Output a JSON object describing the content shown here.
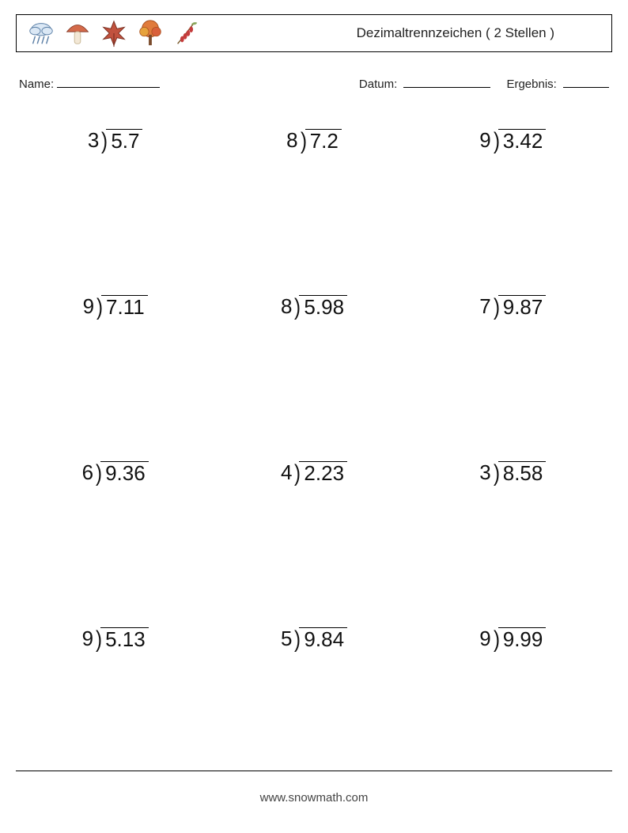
{
  "header": {
    "title": "Dezimaltrennzeichen ( 2 Stellen )",
    "icons": [
      "rain-cloud",
      "mushroom",
      "maple-leaf",
      "autumn-tree",
      "barberry"
    ]
  },
  "info": {
    "name_label": "Name:",
    "date_label": "Datum:",
    "result_label": "Ergebnis:"
  },
  "worksheet": {
    "type": "long-division-grid",
    "columns": 3,
    "rows": 4,
    "font_size_pt": 26,
    "text_color": "#111111",
    "vinculum_color": "#000000",
    "vinculum_width": 1.6,
    "problems": [
      {
        "divisor": "3",
        "dividend": "5.7"
      },
      {
        "divisor": "8",
        "dividend": "7.2"
      },
      {
        "divisor": "9",
        "dividend": "3.42"
      },
      {
        "divisor": "9",
        "dividend": "7.11"
      },
      {
        "divisor": "8",
        "dividend": "5.98"
      },
      {
        "divisor": "7",
        "dividend": "9.87"
      },
      {
        "divisor": "6",
        "dividend": "9.36"
      },
      {
        "divisor": "4",
        "dividend": "2.23"
      },
      {
        "divisor": "3",
        "dividend": "8.58"
      },
      {
        "divisor": "9",
        "dividend": "5.13"
      },
      {
        "divisor": "5",
        "dividend": "9.84"
      },
      {
        "divisor": "9",
        "dividend": "9.99"
      }
    ]
  },
  "footer": {
    "text": "www.snowmath.com"
  },
  "colors": {
    "page_background": "#ffffff",
    "border": "#000000",
    "text": "#222222",
    "footer_text": "#444444"
  }
}
